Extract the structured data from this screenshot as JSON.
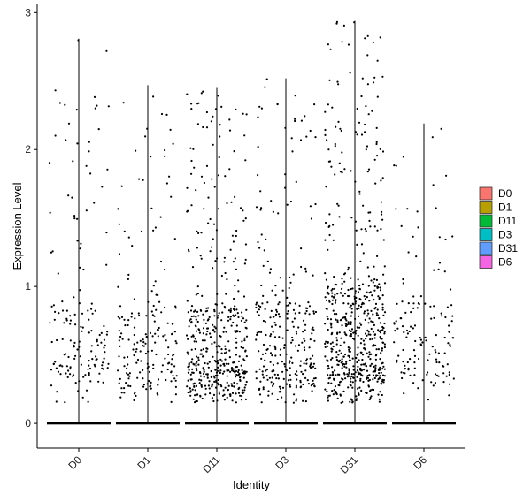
{
  "chart_data": {
    "type": "scatter",
    "subtype": "violin-jitter",
    "title": "",
    "xlabel": "Identity",
    "ylabel": "Expression Level",
    "ylim": [
      -0.18,
      3.06
    ],
    "yticks": [
      0,
      1,
      2,
      3
    ],
    "categories": [
      "D0",
      "D1",
      "D11",
      "D3",
      "D31",
      "D6"
    ],
    "max_values": [
      2.81,
      2.47,
      2.45,
      2.52,
      2.94,
      2.19
    ],
    "series": [
      {
        "name": "D0",
        "color": "#F8766D",
        "nonzero_points": 160,
        "dense_band": [
          0.35,
          0.9
        ]
      },
      {
        "name": "D1",
        "color": "#B79F00",
        "nonzero_points": 190,
        "dense_band": [
          0.25,
          0.85
        ]
      },
      {
        "name": "D11",
        "color": "#00BA38",
        "nonzero_points": 470,
        "dense_band": [
          0.2,
          0.85
        ]
      },
      {
        "name": "D3",
        "color": "#00BFC4",
        "nonzero_points": 290,
        "dense_band": [
          0.2,
          0.9
        ]
      },
      {
        "name": "D31",
        "color": "#619CFF",
        "nonzero_points": 620,
        "dense_band": [
          0.3,
          1.0
        ]
      },
      {
        "name": "D6",
        "color": "#F564E3",
        "nonzero_points": 140,
        "dense_band": [
          0.3,
          0.9
        ]
      }
    ],
    "legend": {
      "position": "right",
      "entries": [
        "D0",
        "D1",
        "D11",
        "D3",
        "D31",
        "D6"
      ]
    },
    "grid": false
  }
}
